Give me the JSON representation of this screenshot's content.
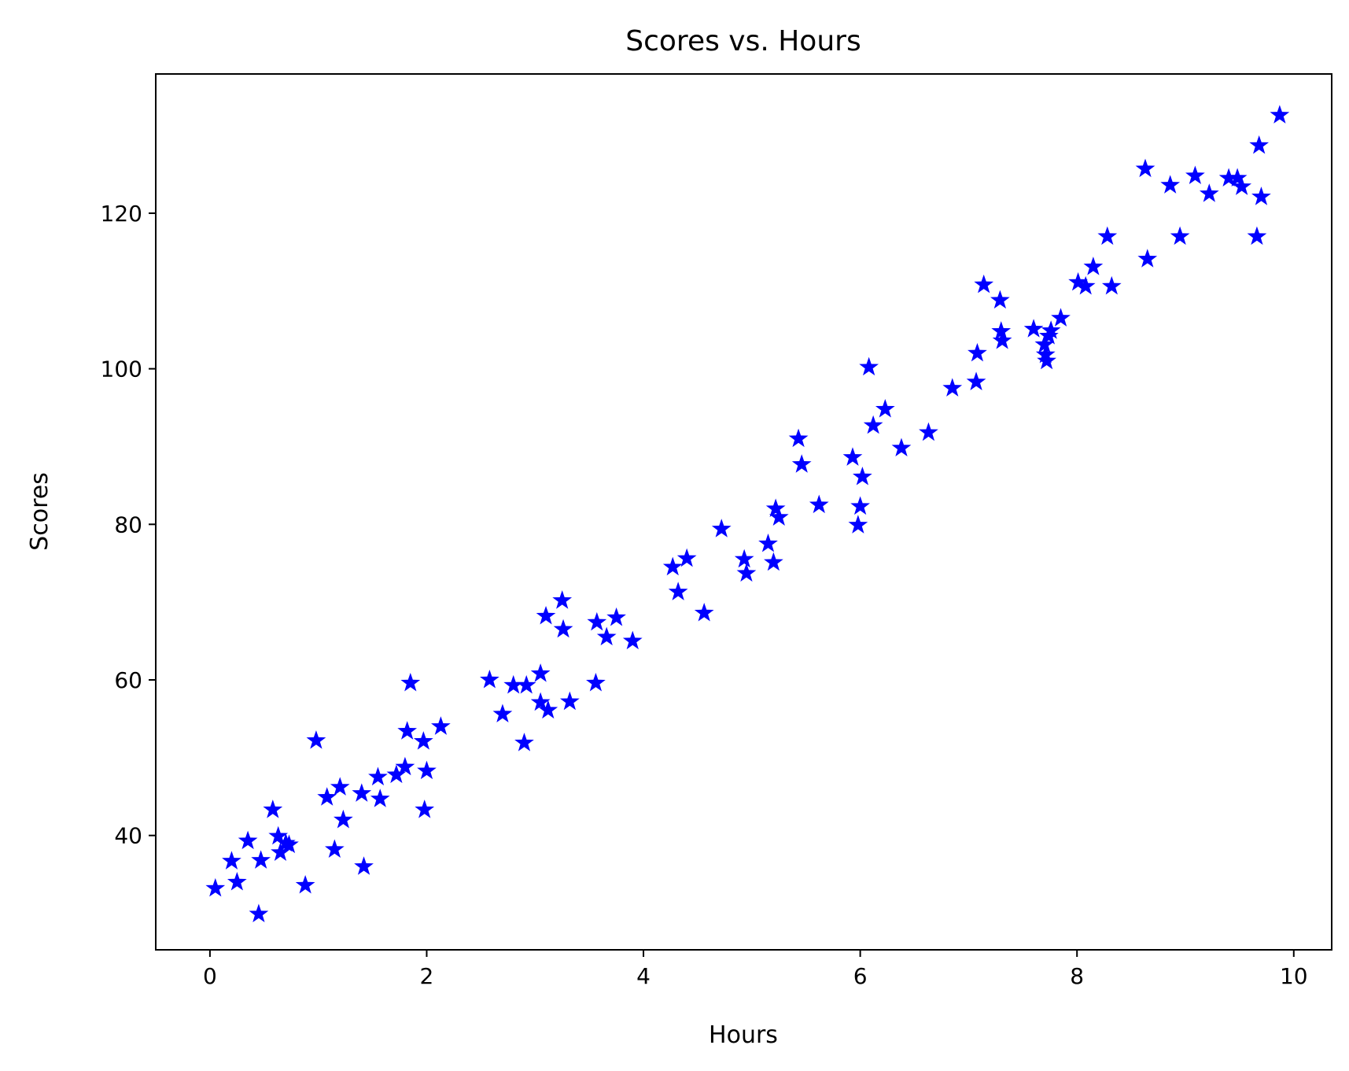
{
  "chart_data": {
    "type": "scatter",
    "title": "Scores vs. Hours",
    "xlabel": "Hours",
    "ylabel": "Scores",
    "xlim": [
      -0.5,
      10.35
    ],
    "ylim": [
      25.3,
      137.9
    ],
    "xticks": [
      0,
      2,
      4,
      6,
      8,
      10
    ],
    "yticks": [
      40,
      60,
      80,
      100,
      120
    ],
    "grid": false,
    "marker": "star",
    "color": "#0000ff",
    "series": [
      {
        "x": [
          0.05,
          0.2,
          0.25,
          0.35,
          0.45,
          0.47,
          0.58,
          0.63,
          0.65,
          0.7,
          0.73,
          0.88,
          0.98,
          1.08,
          1.15,
          1.2,
          1.23,
          1.4,
          1.42,
          1.55,
          1.57,
          1.72,
          1.8,
          1.82,
          1.85,
          1.97,
          1.98,
          2.0,
          2.13,
          2.58,
          2.7,
          2.8,
          2.9,
          2.92,
          3.05,
          3.05,
          3.1,
          3.12,
          3.25,
          3.26,
          3.32,
          3.56,
          3.57,
          3.66,
          3.75,
          3.9,
          4.27,
          4.32,
          4.4,
          4.56,
          4.72,
          4.93,
          4.95,
          5.15,
          5.2,
          5.22,
          5.25,
          5.43,
          5.46,
          5.62,
          5.93,
          5.98,
          6.0,
          6.02,
          6.08,
          6.12,
          6.23,
          6.38,
          6.63,
          6.85,
          7.07,
          7.08,
          7.14,
          7.29,
          7.3,
          7.31,
          7.6,
          7.7,
          7.71,
          7.72,
          7.74,
          7.76,
          7.85,
          8.01,
          8.08,
          8.15,
          8.28,
          8.32,
          8.63,
          8.65,
          8.86,
          8.95,
          9.09,
          9.22,
          9.4,
          9.48,
          9.52,
          9.66,
          9.68,
          9.7,
          9.87
        ],
        "y": [
          33.2,
          36.7,
          34.0,
          39.3,
          29.9,
          36.8,
          43.3,
          39.9,
          37.8,
          39.0,
          38.8,
          33.6,
          52.2,
          44.9,
          38.2,
          46.2,
          42.0,
          45.4,
          36.0,
          47.5,
          44.7,
          47.8,
          48.8,
          53.4,
          59.6,
          52.1,
          43.3,
          48.3,
          54.0,
          60.0,
          55.6,
          59.3,
          51.9,
          59.3,
          60.8,
          57.1,
          68.2,
          56.1,
          70.2,
          66.5,
          57.2,
          59.6,
          67.4,
          65.5,
          68.0,
          65.0,
          74.5,
          71.3,
          75.6,
          68.6,
          79.4,
          75.5,
          73.7,
          77.5,
          75.1,
          82.0,
          80.9,
          91.0,
          87.7,
          82.5,
          88.6,
          79.9,
          82.3,
          86.1,
          100.2,
          92.7,
          94.8,
          89.8,
          91.8,
          97.5,
          98.3,
          102.0,
          110.8,
          108.8,
          104.8,
          103.6,
          105.1,
          103.1,
          101.8,
          101.0,
          104.2,
          104.9,
          106.5,
          111.1,
          110.6,
          113.1,
          117.0,
          110.6,
          125.7,
          114.1,
          123.6,
          117.0,
          124.8,
          122.5,
          124.5,
          124.5,
          123.4,
          117.0,
          128.7,
          122.1,
          132.6
        ]
      }
    ]
  }
}
